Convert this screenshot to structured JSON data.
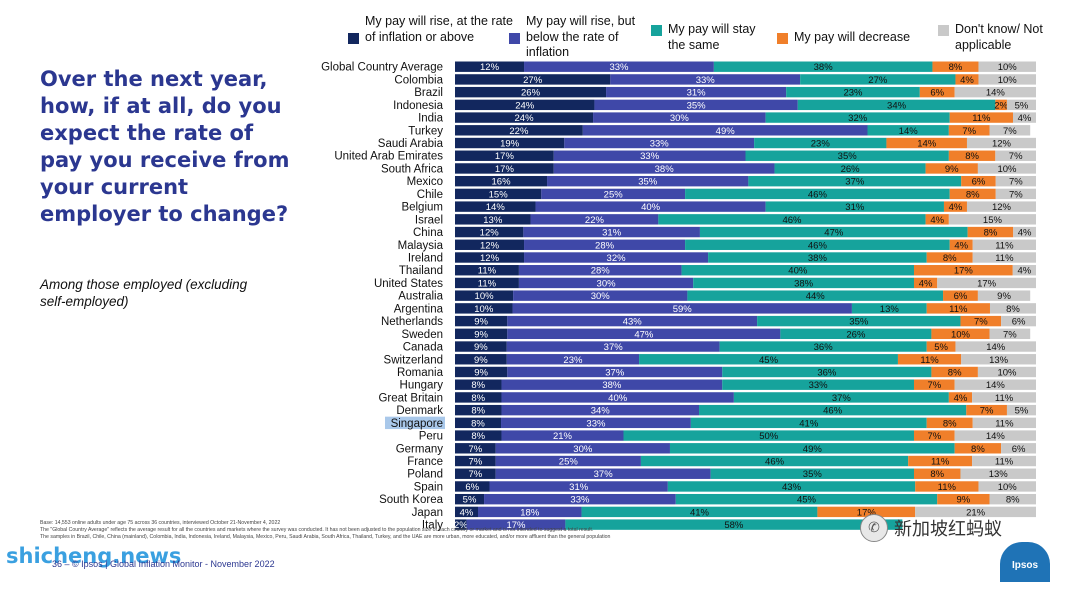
{
  "headline": "Over the next year, how, if at all, do you expect the rate of pay you receive from your current employer to change?",
  "subtitle": "Among those employed (excluding self-employed)",
  "legend": [
    {
      "label": "My pay will rise, at the rate of inflation or above",
      "color": "#12275e"
    },
    {
      "label": "My pay will rise, but below the rate of inflation",
      "color": "#3f48a8"
    },
    {
      "label": "My pay will stay the same",
      "color": "#16a39c"
    },
    {
      "label": "My pay will decrease",
      "color": "#f07f2a"
    },
    {
      "label": "Don't know/ Not applicable",
      "color": "#c9c9c9"
    }
  ],
  "chart_data": {
    "type": "bar",
    "orientation": "horizontal-stacked-100",
    "categories": [
      "Global Country Average",
      "Colombia",
      "Brazil",
      "Indonesia",
      "India",
      "Turkey",
      "Saudi Arabia",
      "United Arab Emirates",
      "South Africa",
      "Mexico",
      "Chile",
      "Belgium",
      "Israel",
      "China",
      "Malaysia",
      "Ireland",
      "Thailand",
      "United States",
      "Australia",
      "Argentina",
      "Netherlands",
      "Sweden",
      "Canada",
      "Switzerland",
      "Romania",
      "Hungary",
      "Great Britain",
      "Denmark",
      "Singapore",
      "Peru",
      "Germany",
      "France",
      "Poland",
      "Spain",
      "South Korea",
      "Japan",
      "Italy"
    ],
    "highlighted_category": "Singapore",
    "series": [
      {
        "name": "My pay will rise, at the rate of inflation or above",
        "values": [
          12,
          27,
          26,
          24,
          24,
          22,
          19,
          17,
          17,
          16,
          15,
          14,
          13,
          12,
          12,
          12,
          11,
          11,
          10,
          10,
          9,
          9,
          9,
          9,
          9,
          8,
          8,
          8,
          8,
          8,
          7,
          7,
          7,
          6,
          5,
          4,
          2
        ]
      },
      {
        "name": "My pay will rise, but below the rate of inflation",
        "values": [
          33,
          33,
          31,
          35,
          30,
          49,
          33,
          33,
          38,
          35,
          25,
          40,
          22,
          31,
          28,
          32,
          28,
          30,
          30,
          59,
          43,
          47,
          37,
          23,
          37,
          38,
          40,
          34,
          33,
          21,
          30,
          25,
          37,
          31,
          33,
          18,
          17
        ]
      },
      {
        "name": "My pay will stay the same",
        "values": [
          38,
          27,
          23,
          34,
          32,
          14,
          23,
          35,
          26,
          37,
          46,
          31,
          46,
          47,
          46,
          38,
          40,
          38,
          44,
          13,
          35,
          26,
          36,
          45,
          36,
          33,
          37,
          46,
          41,
          50,
          49,
          46,
          35,
          43,
          45,
          41,
          58
        ]
      },
      {
        "name": "My pay will decrease",
        "values": [
          8,
          4,
          6,
          2,
          11,
          7,
          14,
          8,
          9,
          6,
          8,
          4,
          4,
          8,
          4,
          8,
          17,
          4,
          6,
          11,
          7,
          10,
          5,
          11,
          8,
          7,
          4,
          7,
          8,
          7,
          8,
          11,
          8,
          11,
          9,
          17,
          null
        ]
      },
      {
        "name": "Don't know/ Not applicable",
        "values": [
          10,
          10,
          14,
          5,
          4,
          7,
          12,
          7,
          10,
          7,
          7,
          12,
          15,
          4,
          11,
          11,
          4,
          17,
          9,
          8,
          6,
          7,
          14,
          13,
          10,
          14,
          11,
          5,
          11,
          14,
          6,
          11,
          13,
          10,
          8,
          21,
          null
        ]
      }
    ],
    "value_suffix": "%",
    "xlim": [
      0,
      100
    ]
  },
  "footnotes": [
    "Base: 14,553 online adults under age 75 across 36 countries, interviewed October 21-November 4, 2022",
    "The \"Global Country Average\" reflects the average result for all the countries and markets where the survey was conducted. It has not been adjusted to the population size of each country or market and is not intended to suggest a total result.",
    "The samples in Brazil, Chile, China (mainland), Colombia, India, Indonesia, Ireland, Malaysia, Mexico, Peru, Saudi Arabia, South Africa, Thailand, Turkey, and the UAE are more urban, more educated, and/or more affluent than the general population"
  ],
  "footer": "36 – © Ipsos | Global Inflation Monitor - November 2022",
  "watermark_left": "shicheng.news",
  "watermark_right": "新加坡红蚂蚁",
  "logo_text": "Ipsos"
}
